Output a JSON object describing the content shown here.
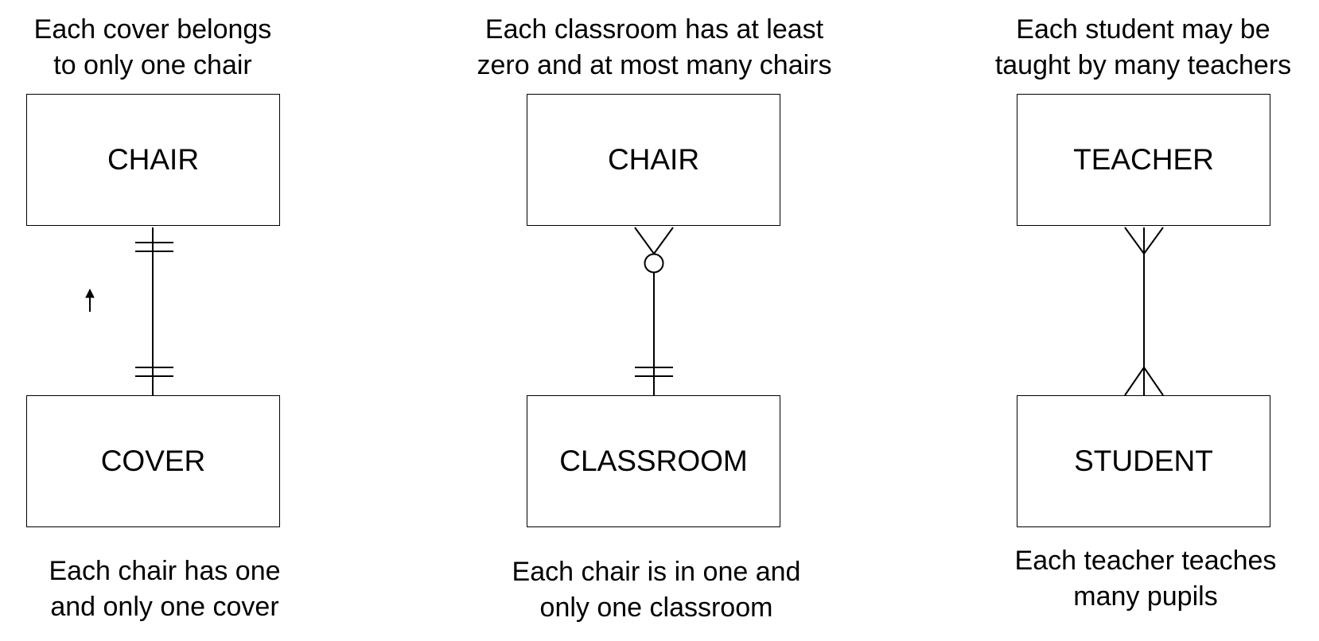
{
  "diagrams": [
    {
      "top_caption": [
        "Each cover belongs",
        "to only one chair"
      ],
      "top_entity": "CHAIR",
      "bottom_entity": "COVER",
      "bottom_caption": [
        "Each chair has one",
        "and only one cover"
      ],
      "top_end": "one-and-only-one",
      "bottom_end": "one-and-only-one"
    },
    {
      "top_caption": [
        "Each classroom has at least",
        "zero and at most many chairs"
      ],
      "top_entity": "CHAIR",
      "bottom_entity": "CLASSROOM",
      "bottom_caption": [
        "Each chair is in one and",
        "only one classroom"
      ],
      "top_end": "zero-or-many",
      "bottom_end": "one-and-only-one"
    },
    {
      "top_caption": [
        "Each student may be",
        "taught by many teachers"
      ],
      "top_entity": "TEACHER",
      "bottom_entity": "STUDENT",
      "bottom_caption": [
        "Each teacher teaches",
        "many pupils"
      ],
      "top_end": "many",
      "bottom_end": "many"
    }
  ]
}
